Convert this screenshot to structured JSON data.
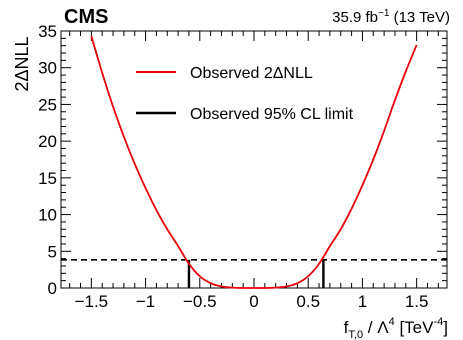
{
  "chart_data": {
    "type": "line",
    "experiment_label": "CMS",
    "lumi_label": "35.9  fb",
    "lumi_exponent": "−1",
    "lumi_energy": " (13 TeV)",
    "xlabel": {
      "base": "f",
      "sub": "T,0",
      "middle": " / Λ",
      "sup": "4",
      "unit": " [TeV",
      "unit_sup": "-4",
      "unit_close": "]"
    },
    "ylabel": "2ΔNLL",
    "xlim": [
      -1.78,
      1.78
    ],
    "ylim": [
      0,
      35
    ],
    "x_ticks": [
      -1.5,
      -1,
      -0.5,
      0,
      0.5,
      1,
      1.5
    ],
    "x_tick_labels": [
      "−1.5",
      "−1",
      "−0.5",
      "0",
      "0.5",
      "1",
      "1.5"
    ],
    "y_ticks": [
      0,
      5,
      10,
      15,
      20,
      25,
      30,
      35
    ],
    "y_tick_labels": [
      "0",
      "5",
      "10",
      "15",
      "20",
      "25",
      "30",
      "35"
    ],
    "grid": false,
    "legend_position": "top-center",
    "series": [
      {
        "name": "Observed 2ΔNLL",
        "color": "#e8000b",
        "x": [
          -1.5,
          -1.4,
          -1.3,
          -1.2,
          -1.1,
          -1.0,
          -0.9,
          -0.8,
          -0.7,
          -0.6,
          -0.5,
          -0.4,
          -0.3,
          -0.2,
          -0.1,
          0.0,
          0.1,
          0.2,
          0.3,
          0.4,
          0.5,
          0.6,
          0.7,
          0.8,
          0.9,
          1.0,
          1.1,
          1.2,
          1.3,
          1.4,
          1.5
        ],
        "y": [
          34.3,
          29.3,
          24.7,
          20.6,
          16.9,
          13.6,
          10.6,
          8.0,
          5.7,
          3.3,
          1.6,
          0.65,
          0.2,
          0.05,
          0.0,
          0.0,
          0.0,
          0.05,
          0.2,
          0.65,
          1.6,
          3.3,
          5.7,
          8.0,
          10.8,
          14.0,
          17.5,
          21.4,
          25.6,
          29.5,
          33.1
        ]
      }
    ],
    "threshold": {
      "name": "Observed 95% CL limit",
      "value": 3.84,
      "limits": [
        -0.6,
        0.64
      ],
      "color": "#000000"
    }
  }
}
